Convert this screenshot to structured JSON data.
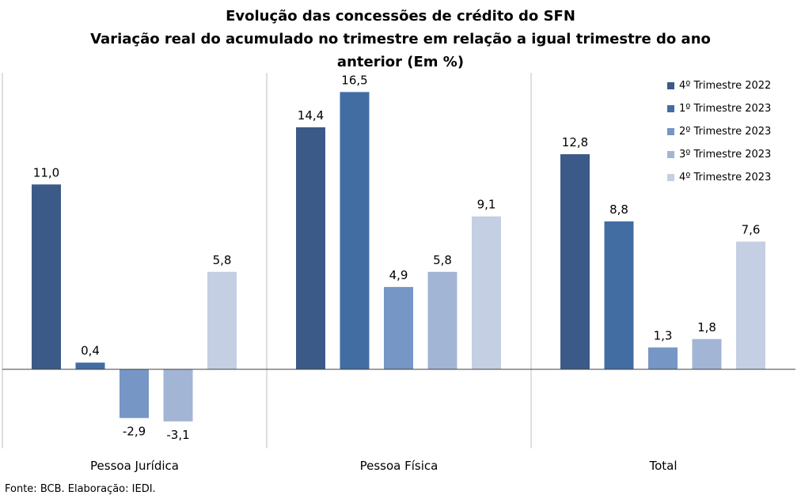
{
  "chart_data": {
    "type": "bar",
    "title": "Evolução das concessões de crédito do SFN",
    "subtitle": "Variação real do acumulado no trimestre em relação a igual trimestre do ano anterior (Em %)",
    "categories": [
      "Pessoa Jurídica",
      "Pessoa Física",
      "Total"
    ],
    "series": [
      {
        "name": "4º Trimestre 2022",
        "color": "#3b5a88",
        "values": [
          11.0,
          14.4,
          12.8
        ],
        "labels": [
          "11,0",
          "14,4",
          "12,8"
        ]
      },
      {
        "name": "1º Trimestre 2023",
        "color": "#426da3",
        "values": [
          0.4,
          16.5,
          8.8
        ],
        "labels": [
          "0,4",
          "16,5",
          "8,8"
        ]
      },
      {
        "name": "2º Trimestre 2023",
        "color": "#7696c6",
        "values": [
          -2.9,
          4.9,
          1.3
        ],
        "labels": [
          "-2,9",
          "4,9",
          "1,3"
        ]
      },
      {
        "name": "3º Trimestre 2023",
        "color": "#a3b5d5",
        "values": [
          -3.1,
          5.8,
          1.8
        ],
        "labels": [
          "-3,1",
          "5,8",
          "1,8"
        ]
      },
      {
        "name": "4º Trimestre 2023",
        "color": "#c5cfe3",
        "values": [
          5.8,
          9.1,
          7.6
        ],
        "labels": [
          "5,8",
          "9,1",
          "7,6"
        ]
      }
    ],
    "xlabel": "",
    "ylabel": "",
    "ylim": [
      -5.0,
      17.5
    ],
    "grid": false,
    "legend_position": "top-right"
  },
  "source": "Fonte: BCB. Elaboração: IEDI."
}
